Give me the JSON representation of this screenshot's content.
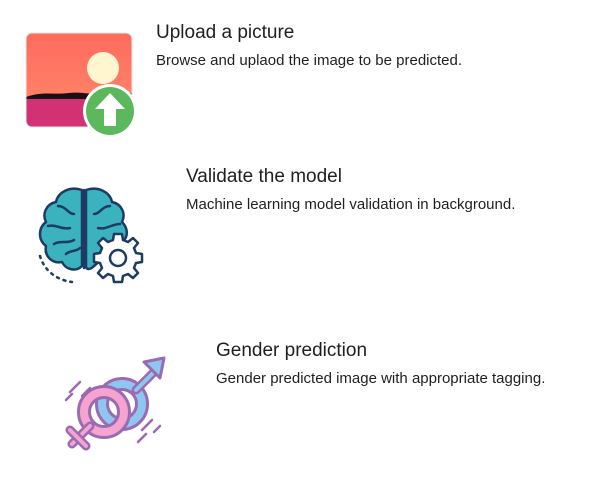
{
  "steps": [
    {
      "icon": "upload-picture-icon",
      "title": "Upload a picture",
      "description": "Browse and uplaod the image to be predicted."
    },
    {
      "icon": "brain-gear-icon",
      "title": "Validate the model",
      "description": "Machine learning model validation in background."
    },
    {
      "icon": "gender-symbols-icon",
      "title": "Gender prediction",
      "description": "Gender predicted image with appropriate tagging."
    }
  ],
  "colors": {
    "text": "#1f1f1f",
    "picture_sky": "#ff6f61",
    "picture_sun": "#fff5cc",
    "picture_ground": "#d63273",
    "upload_badge": "#5cb85c",
    "brain": "#3bb3bf",
    "brain_outline": "#1d3b63",
    "gender_blue": "#8fc6ef",
    "gender_pink": "#f5a3cf",
    "gender_outline": "#9a6ab3"
  }
}
